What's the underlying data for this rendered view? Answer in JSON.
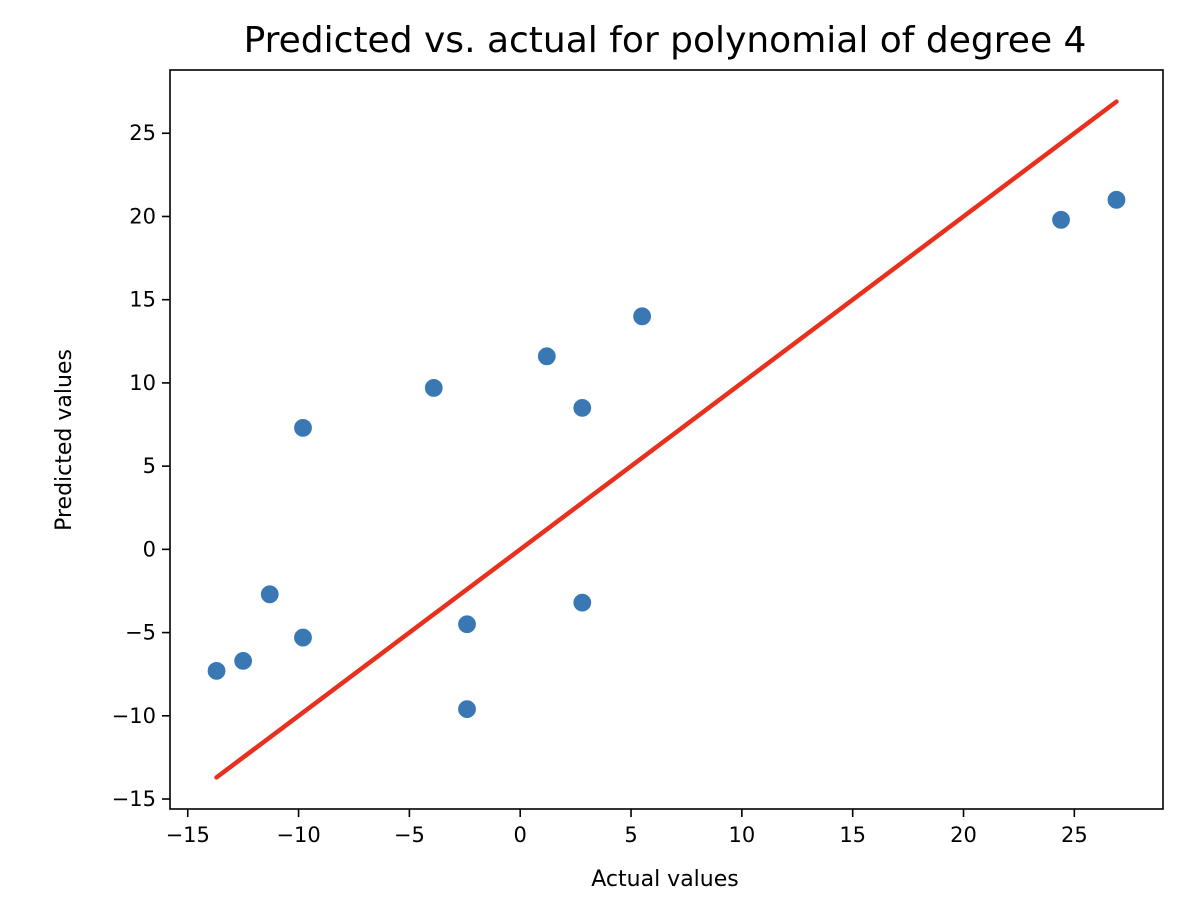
{
  "chart_data": {
    "type": "scatter",
    "title": "Predicted vs. actual for polynomial of degree 4",
    "xlabel": "Actual values",
    "ylabel": "Predicted values",
    "xlim": [
      -15.8,
      29.0
    ],
    "ylim": [
      -15.6,
      28.8
    ],
    "grid": false,
    "xticks": [
      -15,
      -10,
      -5,
      0,
      5,
      10,
      15,
      20,
      25
    ],
    "yticks": [
      -15,
      -10,
      -5,
      0,
      5,
      10,
      15,
      20,
      25
    ],
    "xtick_labels": [
      "−15",
      "−10",
      "−5",
      "0",
      "5",
      "10",
      "15",
      "20",
      "25"
    ],
    "ytick_labels": [
      "−15",
      "−10",
      "−5",
      "0",
      "5",
      "10",
      "15",
      "20",
      "25"
    ],
    "series": [
      {
        "name": "predictions",
        "kind": "scatter",
        "color": "#3a78b4",
        "points": [
          {
            "x": -13.7,
            "y": -7.3
          },
          {
            "x": -12.5,
            "y": -6.7
          },
          {
            "x": -11.3,
            "y": -2.7
          },
          {
            "x": -9.8,
            "y": -5.3
          },
          {
            "x": -9.8,
            "y": 7.3
          },
          {
            "x": -3.9,
            "y": 9.7
          },
          {
            "x": -2.4,
            "y": -4.5
          },
          {
            "x": -2.4,
            "y": -9.6
          },
          {
            "x": 1.2,
            "y": 11.6
          },
          {
            "x": 2.8,
            "y": 8.5
          },
          {
            "x": 2.8,
            "y": -3.2
          },
          {
            "x": 5.5,
            "y": 14.0
          },
          {
            "x": 24.4,
            "y": 19.8
          },
          {
            "x": 26.9,
            "y": 21.0
          }
        ]
      },
      {
        "name": "identity line",
        "kind": "line",
        "color": "#e8301e",
        "points": [
          {
            "x": -13.7,
            "y": -13.7
          },
          {
            "x": 26.9,
            "y": 26.9
          }
        ]
      }
    ]
  }
}
